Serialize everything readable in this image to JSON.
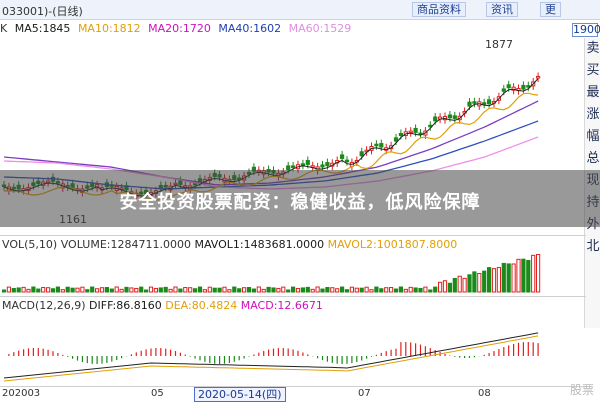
{
  "title_bar": {
    "code": "033001)-(日线)",
    "buttons": [
      "商品资料",
      "资讯",
      "更"
    ]
  },
  "ma_line": {
    "prefix": "K",
    "items": [
      {
        "label": "MA5:1845",
        "color": "#1a1a1a"
      },
      {
        "label": "MA10:1812",
        "color": "#e0a008"
      },
      {
        "label": "MA20:1720",
        "color": "#d010c0"
      },
      {
        "label": "MA40:1602",
        "color": "#1f3fb0"
      },
      {
        "label": "MA60:1529",
        "color": "#e08ee0"
      }
    ],
    "price_box": "1900"
  },
  "sidebar": [
    "卖",
    "买",
    "最",
    "涨",
    "幅",
    "总",
    "现",
    "持",
    "外",
    "北"
  ],
  "annotations": {
    "high": "1877",
    "low": "1161"
  },
  "banner": "安全投资股票配资：稳健收益，低风险保障",
  "vol_line": {
    "items": [
      {
        "label": "VOL(5,10)",
        "color": "#333333"
      },
      {
        "label": "VOLUME:1284711.0000",
        "color": "#333333"
      },
      {
        "label": "MAVOL1:1483681.0000",
        "color": "#1a1a1a"
      },
      {
        "label": "MAVOL2:1001807.8000",
        "color": "#e0a008"
      }
    ]
  },
  "macd_line": {
    "items": [
      {
        "label": "MACD(12,26,9)",
        "color": "#333333"
      },
      {
        "label": "DIFF:86.8160",
        "color": "#1a1a1a"
      },
      {
        "label": "DEA:80.4824",
        "color": "#e0a008"
      },
      {
        "label": "MACD:12.6671",
        "color": "#d010c0"
      }
    ]
  },
  "x_axis": {
    "labels": [
      "202003",
      "05",
      "07",
      "08"
    ],
    "selected_date": "2020-05-14(四)"
  },
  "watermark": "股票"
}
